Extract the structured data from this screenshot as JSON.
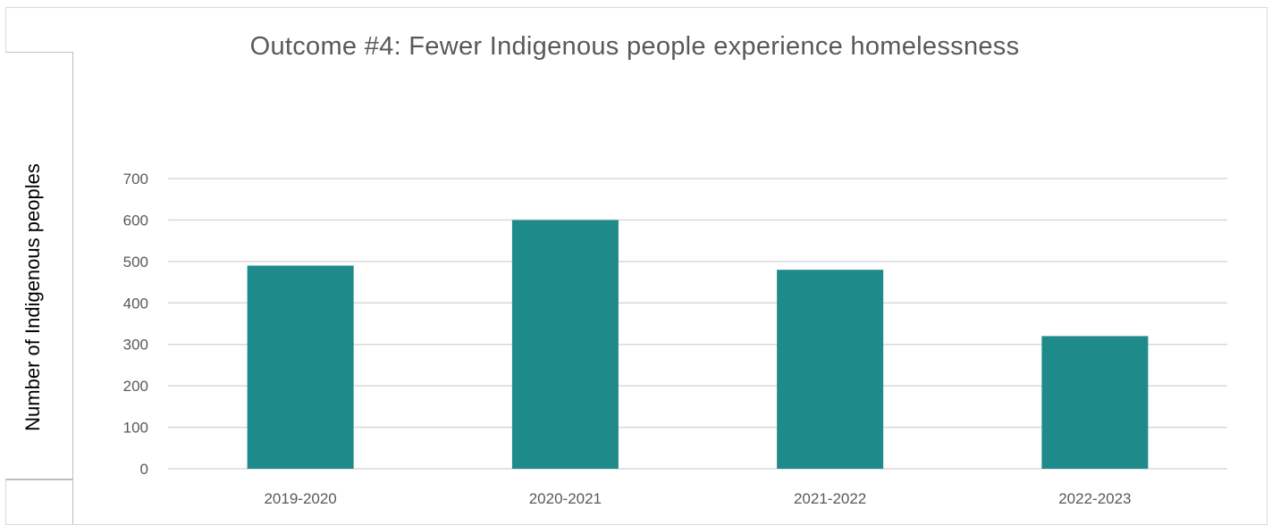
{
  "chart_data": {
    "type": "bar",
    "title": "Outcome #4: Fewer Indigenous people experience homelessness",
    "xlabel": "",
    "ylabel": "Number of Indigenous peoples",
    "categories": [
      "2019-2020",
      "2020-2021",
      "2021-2022",
      "2022-2023"
    ],
    "values": [
      490,
      600,
      480,
      320
    ],
    "ylim": [
      0,
      700
    ],
    "yticks": [
      "0",
      "100",
      "200",
      "300",
      "400",
      "500",
      "600",
      "700"
    ],
    "grid": true,
    "bar_color": "#1f8a8a",
    "grid_color": "#d9d9d9"
  }
}
